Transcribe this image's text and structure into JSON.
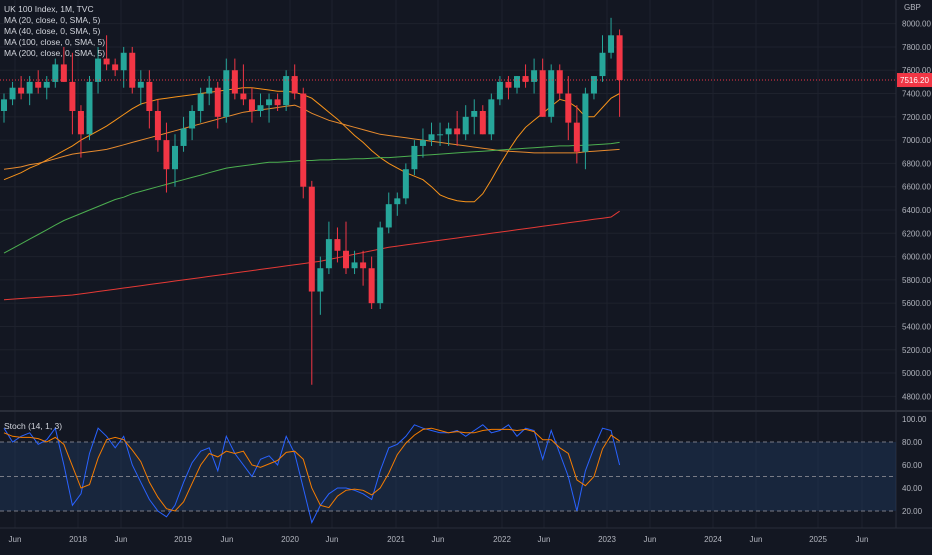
{
  "chart_data": {
    "type": "candlestick",
    "title": "UK 100 Index, 1M, TVC",
    "currency": "GBP",
    "last_price_label": "7516.20",
    "price_axis": {
      "min": 4700,
      "max": 8100,
      "ticks": [
        4800,
        5000,
        5200,
        5400,
        5600,
        5800,
        6000,
        6200,
        6400,
        6600,
        6800,
        7000,
        7200,
        7400,
        7600,
        7800,
        8000
      ]
    },
    "time_axis": {
      "labels": [
        "Jun",
        "2018",
        "Jun",
        "2019",
        "Jun",
        "2020",
        "Jun",
        "2021",
        "Jun",
        "2022",
        "Jun",
        "2023",
        "Jun",
        "2024",
        "Jun",
        "2025",
        "Jun"
      ]
    },
    "colors": {
      "up": "#26a69a",
      "down": "#f23645",
      "background": "#131722",
      "grid": "#1e222d",
      "ma20": "#f7931a",
      "ma40": "#e68a2e",
      "ma100": "#4caf50",
      "ma200": "#e53935",
      "stoch_k": "#2962ff",
      "stoch_d": "#f57c00",
      "stoch_band": "#1e3a5f"
    },
    "candles": [
      [
        7250,
        7400,
        7150,
        7350
      ],
      [
        7350,
        7500,
        7300,
        7450
      ],
      [
        7450,
        7550,
        7350,
        7400
      ],
      [
        7400,
        7550,
        7300,
        7500
      ],
      [
        7500,
        7600,
        7400,
        7450
      ],
      [
        7450,
        7550,
        7350,
        7500
      ],
      [
        7500,
        7700,
        7450,
        7650
      ],
      [
        7650,
        7800,
        7500,
        7500
      ],
      [
        7500,
        7750,
        7050,
        7250
      ],
      [
        7250,
        7300,
        6850,
        7050
      ],
      [
        7050,
        7550,
        7000,
        7500
      ],
      [
        7500,
        7800,
        7400,
        7700
      ],
      [
        7700,
        7900,
        7600,
        7650
      ],
      [
        7650,
        7700,
        7550,
        7600
      ],
      [
        7600,
        7800,
        7450,
        7750
      ],
      [
        7750,
        7800,
        7400,
        7450
      ],
      [
        7450,
        7600,
        7300,
        7500
      ],
      [
        7500,
        7600,
        7100,
        7250
      ],
      [
        7250,
        7350,
        6900,
        7000
      ],
      [
        7000,
        7150,
        6550,
        6750
      ],
      [
        6750,
        7050,
        6600,
        6950
      ],
      [
        6950,
        7200,
        6900,
        7100
      ],
      [
        7100,
        7300,
        7000,
        7250
      ],
      [
        7250,
        7450,
        7150,
        7400
      ],
      [
        7400,
        7550,
        7300,
        7450
      ],
      [
        7450,
        7500,
        7100,
        7200
      ],
      [
        7200,
        7700,
        7150,
        7600
      ],
      [
        7600,
        7700,
        7350,
        7400
      ],
      [
        7400,
        7650,
        7300,
        7350
      ],
      [
        7350,
        7450,
        7150,
        7250
      ],
      [
        7250,
        7400,
        7200,
        7300
      ],
      [
        7300,
        7400,
        7150,
        7350
      ],
      [
        7350,
        7400,
        7250,
        7300
      ],
      [
        7300,
        7600,
        7250,
        7550
      ],
      [
        7550,
        7650,
        7350,
        7400
      ],
      [
        7400,
        7450,
        6500,
        6600
      ],
      [
        6600,
        6650,
        4900,
        5700
      ],
      [
        5700,
        6000,
        5500,
        5900
      ],
      [
        5900,
        6300,
        5850,
        6150
      ],
      [
        6150,
        6250,
        5950,
        6050
      ],
      [
        6050,
        6300,
        5850,
        5900
      ],
      [
        5900,
        6050,
        5850,
        5950
      ],
      [
        5950,
        6050,
        5750,
        5900
      ],
      [
        5900,
        6000,
        5550,
        5600
      ],
      [
        5600,
        6300,
        5550,
        6250
      ],
      [
        6250,
        6550,
        6200,
        6450
      ],
      [
        6450,
        6550,
        6350,
        6500
      ],
      [
        6500,
        6800,
        6450,
        6750
      ],
      [
        6750,
        7000,
        6700,
        6950
      ],
      [
        6950,
        7100,
        6850,
        7000
      ],
      [
        7000,
        7150,
        6950,
        7050
      ],
      [
        7050,
        7150,
        6950,
        7050
      ],
      [
        7050,
        7150,
        6950,
        7100
      ],
      [
        7100,
        7250,
        6950,
        7050
      ],
      [
        7050,
        7300,
        7000,
        7200
      ],
      [
        7200,
        7350,
        7050,
        7250
      ],
      [
        7250,
        7300,
        7050,
        7050
      ],
      [
        7050,
        7400,
        7000,
        7350
      ],
      [
        7350,
        7550,
        7300,
        7500
      ],
      [
        7500,
        7550,
        7350,
        7450
      ],
      [
        7450,
        7550,
        7400,
        7550
      ],
      [
        7550,
        7650,
        7450,
        7500
      ],
      [
        7500,
        7700,
        7400,
        7600
      ],
      [
        7600,
        7700,
        7200,
        7200
      ],
      [
        7200,
        7650,
        7150,
        7600
      ],
      [
        7600,
        7650,
        7350,
        7400
      ],
      [
        7400,
        7550,
        7000,
        7150
      ],
      [
        7150,
        7300,
        6800,
        6900
      ],
      [
        6900,
        7450,
        6750,
        7400
      ],
      [
        7400,
        7550,
        7350,
        7550
      ],
      [
        7550,
        7900,
        7500,
        7750
      ],
      [
        7750,
        8050,
        7700,
        7900
      ],
      [
        7900,
        7950,
        7200,
        7516
      ]
    ],
    "series": [
      {
        "name": "MA (20, close, 0, SMA, 5)",
        "values": [
          6660,
          6690,
          6720,
          6760,
          6790,
          6830,
          6870,
          6910,
          6950,
          7000,
          7040,
          7080,
          7120,
          7170,
          7220,
          7270,
          7310,
          7330,
          7350,
          7360,
          7370,
          7380,
          7390,
          7400,
          7410,
          7420,
          7430,
          7440,
          7450,
          7450,
          7440,
          7430,
          7420,
          7420,
          7410,
          7390,
          7360,
          7300,
          7240,
          7180,
          7110,
          7040,
          6980,
          6910,
          6850,
          6800,
          6760,
          6720,
          6690,
          6660,
          6600,
          6530,
          6500,
          6480,
          6470,
          6470,
          6540,
          6660,
          6790,
          6910,
          7020,
          7110,
          7170,
          7230,
          7290,
          7350,
          7330,
          7280,
          7200,
          7200,
          7280,
          7360,
          7400
        ]
      },
      {
        "name": "MA (40, close, 0, SMA, 5)",
        "values": [
          6750,
          6760,
          6770,
          6790,
          6800,
          6820,
          6840,
          6860,
          6880,
          6890,
          6900,
          6910,
          6920,
          6940,
          6960,
          6980,
          7000,
          7020,
          7040,
          7060,
          7080,
          7100,
          7120,
          7140,
          7160,
          7180,
          7200,
          7220,
          7240,
          7250,
          7260,
          7270,
          7280,
          7290,
          7300,
          7270,
          7230,
          7200,
          7170,
          7150,
          7130,
          7110,
          7090,
          7070,
          7050,
          7040,
          7030,
          7020,
          7010,
          7000,
          6990,
          6980,
          6970,
          6960,
          6950,
          6940,
          6930,
          6920,
          6910,
          6905,
          6900,
          6895,
          6890,
          6890,
          6890,
          6890,
          6890,
          6890,
          6900,
          6905,
          6910,
          6915,
          6920
        ]
      },
      {
        "name": "MA (100, close, 0, SMA, 5)",
        "values": [
          6030,
          6070,
          6110,
          6150,
          6190,
          6230,
          6270,
          6310,
          6340,
          6370,
          6400,
          6430,
          6460,
          6490,
          6510,
          6540,
          6560,
          6580,
          6600,
          6620,
          6640,
          6660,
          6680,
          6700,
          6720,
          6740,
          6760,
          6770,
          6780,
          6790,
          6800,
          6810,
          6810,
          6815,
          6820,
          6825,
          6825,
          6830,
          6830,
          6835,
          6835,
          6840,
          6840,
          6845,
          6850,
          6850,
          6855,
          6860,
          6865,
          6870,
          6875,
          6880,
          6885,
          6890,
          6895,
          6900,
          6905,
          6910,
          6915,
          6920,
          6925,
          6930,
          6935,
          6940,
          6945,
          6950,
          6950,
          6955,
          6955,
          6960,
          6965,
          6970,
          6980
        ]
      },
      {
        "name": "MA (200, close, 0, SMA, 5)",
        "values": [
          5630,
          5635,
          5640,
          5645,
          5650,
          5655,
          5660,
          5665,
          5670,
          5680,
          5690,
          5700,
          5710,
          5720,
          5730,
          5740,
          5750,
          5760,
          5770,
          5780,
          5790,
          5800,
          5810,
          5820,
          5830,
          5840,
          5850,
          5860,
          5870,
          5880,
          5890,
          5900,
          5910,
          5920,
          5930,
          5940,
          5950,
          5960,
          5975,
          5990,
          6005,
          6020,
          6035,
          6050,
          6065,
          6080,
          6090,
          6100,
          6110,
          6120,
          6130,
          6140,
          6150,
          6160,
          6170,
          6180,
          6190,
          6200,
          6210,
          6220,
          6230,
          6240,
          6250,
          6260,
          6270,
          6280,
          6290,
          6300,
          6310,
          6320,
          6330,
          6340,
          6390
        ]
      }
    ],
    "stochastic": {
      "label": "Stoch (14, 1, 3)",
      "axis_ticks": [
        20,
        40,
        60,
        80,
        100
      ],
      "upper_band": 80,
      "lower_band": 20,
      "k": [
        92,
        80,
        85,
        88,
        78,
        82,
        92,
        60,
        25,
        35,
        70,
        92,
        85,
        75,
        85,
        60,
        45,
        30,
        20,
        15,
        25,
        45,
        62,
        72,
        75,
        55,
        85,
        70,
        60,
        50,
        65,
        68,
        60,
        85,
        70,
        40,
        10,
        25,
        35,
        40,
        40,
        38,
        35,
        30,
        55,
        75,
        78,
        85,
        95,
        92,
        90,
        88,
        88,
        90,
        85,
        90,
        95,
        88,
        90,
        95,
        85,
        92,
        90,
        65,
        90,
        70,
        50,
        20,
        55,
        75,
        92,
        90,
        60
      ],
      "d": [
        88,
        85,
        84,
        84,
        83,
        80,
        84,
        78,
        59,
        40,
        43,
        66,
        82,
        84,
        82,
        73,
        63,
        45,
        32,
        22,
        20,
        28,
        44,
        60,
        70,
        67,
        72,
        70,
        72,
        60,
        58,
        61,
        64,
        71,
        72,
        65,
        40,
        25,
        23,
        33,
        38,
        39,
        38,
        34,
        40,
        53,
        69,
        79,
        86,
        91,
        92,
        90,
        88,
        89,
        88,
        88,
        90,
        91,
        91,
        91,
        90,
        91,
        89,
        82,
        82,
        75,
        70,
        47,
        42,
        50,
        74,
        86,
        81
      ]
    }
  }
}
